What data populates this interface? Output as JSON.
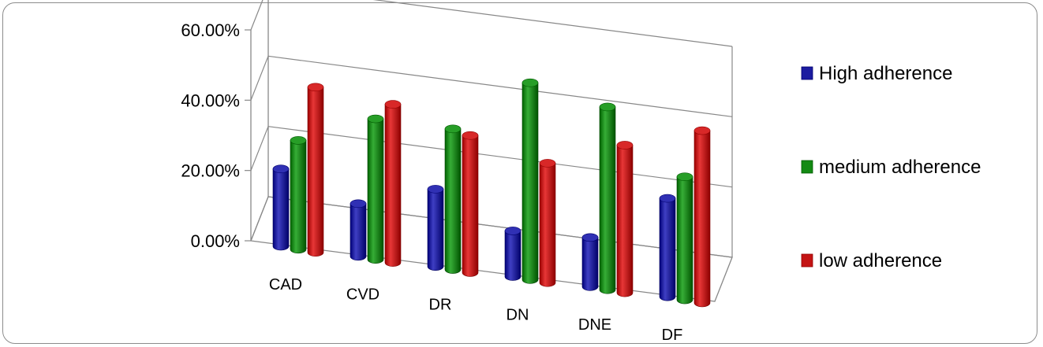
{
  "chart_data": {
    "type": "bar",
    "style": "3d-cylinder",
    "categories": [
      "CAD",
      "CVD",
      "DR",
      "DN",
      "DNE",
      "DF"
    ],
    "series": [
      {
        "name": "High adherence",
        "color": "#1c1ca0",
        "values": [
          0.22,
          0.15,
          0.22,
          0.13,
          0.14,
          0.28
        ]
      },
      {
        "name": "medium adherence",
        "color": "#138a13",
        "values": [
          0.31,
          0.4,
          0.4,
          0.56,
          0.52,
          0.35
        ]
      },
      {
        "name": "low adherence",
        "color": "#c41414",
        "values": [
          0.47,
          0.45,
          0.39,
          0.34,
          0.42,
          0.49
        ]
      }
    ],
    "yticks": [
      "0.00%",
      "20.00%",
      "40.00%",
      "60.00%"
    ],
    "ylim": [
      0,
      0.6
    ],
    "legend_position": "right",
    "grid": true
  }
}
